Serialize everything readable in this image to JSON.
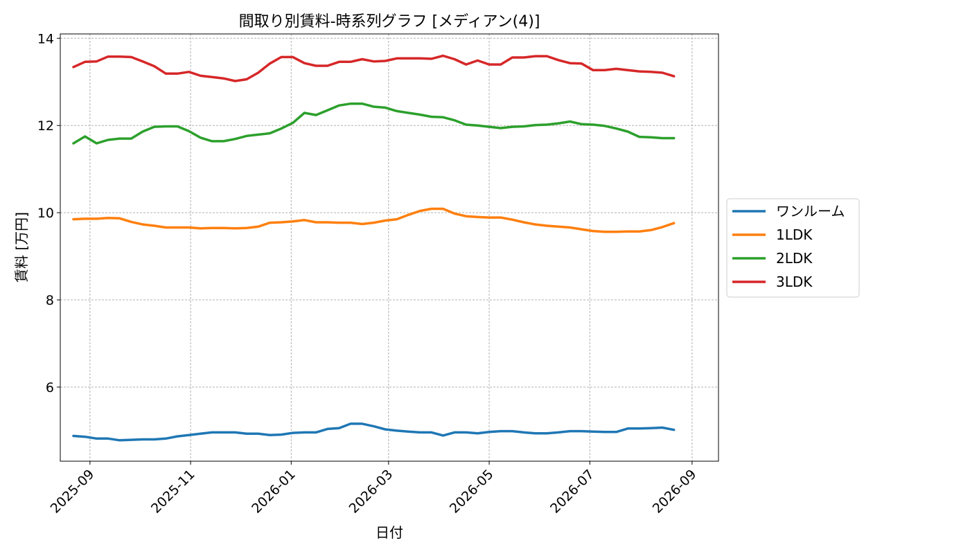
{
  "chart_data": {
    "type": "line",
    "title": "間取り別賃料-時系列グラフ [メディアン(4)]",
    "xlabel": "日付",
    "ylabel": "賃料 [万円]",
    "x_tick_labels": [
      "2025-09",
      "2025-11",
      "2026-01",
      "2026-03",
      "2026-05",
      "2026-07",
      "2026-09"
    ],
    "y_tick_labels": [
      "6",
      "8",
      "10",
      "12",
      "14"
    ],
    "xlim": [
      "2025-08-14",
      "2026-09-17"
    ],
    "ylim": [
      4.3,
      14.1
    ],
    "grid": true,
    "legend_position": "right, outside plot",
    "x": [
      "2025-08-22",
      "2025-08-29",
      "2025-09-05",
      "2025-09-12",
      "2025-09-19",
      "2025-09-26",
      "2025-10-03",
      "2025-10-10",
      "2025-10-17",
      "2025-10-24",
      "2025-10-31",
      "2025-11-07",
      "2025-11-14",
      "2025-11-21",
      "2025-11-28",
      "2025-12-05",
      "2025-12-12",
      "2025-12-19",
      "2025-12-26",
      "2026-01-02",
      "2026-01-09",
      "2026-01-16",
      "2026-01-23",
      "2026-01-30",
      "2026-02-06",
      "2026-02-13",
      "2026-02-20",
      "2026-02-27",
      "2026-03-06",
      "2026-03-13",
      "2026-03-20",
      "2026-03-27",
      "2026-04-03",
      "2026-04-10",
      "2026-04-17",
      "2026-04-24",
      "2026-05-01",
      "2026-05-08",
      "2026-05-15",
      "2026-05-22",
      "2026-05-29",
      "2026-06-05",
      "2026-06-12",
      "2026-06-19",
      "2026-06-26",
      "2026-07-03",
      "2026-07-10",
      "2026-07-17",
      "2026-07-24",
      "2026-07-31",
      "2026-08-07",
      "2026-08-14",
      "2026-08-21"
    ],
    "series": [
      {
        "name": "ワンルーム",
        "color": "#1f77b4",
        "values": [
          4.88,
          4.86,
          4.82,
          4.82,
          4.78,
          4.79,
          4.8,
          4.8,
          4.82,
          4.87,
          4.9,
          4.93,
          4.96,
          4.96,
          4.96,
          4.93,
          4.93,
          4.9,
          4.91,
          4.95,
          4.96,
          4.96,
          5.04,
          5.06,
          5.16,
          5.16,
          5.1,
          5.03,
          5.0,
          4.98,
          4.96,
          4.96,
          4.89,
          4.96,
          4.96,
          4.94,
          4.97,
          4.99,
          4.99,
          4.96,
          4.94,
          4.94,
          4.96,
          4.99,
          4.99,
          4.98,
          4.97,
          4.97,
          5.05,
          5.05,
          5.06,
          5.07,
          5.02
        ]
      },
      {
        "name": "1LDK",
        "color": "#ff7f0e",
        "values": [
          9.85,
          9.86,
          9.86,
          9.88,
          9.87,
          9.79,
          9.73,
          9.7,
          9.66,
          9.66,
          9.66,
          9.64,
          9.65,
          9.65,
          9.64,
          9.65,
          9.68,
          9.77,
          9.78,
          9.8,
          9.83,
          9.78,
          9.78,
          9.77,
          9.77,
          9.74,
          9.77,
          9.82,
          9.85,
          9.95,
          10.04,
          10.09,
          10.09,
          9.98,
          9.92,
          9.9,
          9.89,
          9.89,
          9.84,
          9.78,
          9.73,
          9.7,
          9.68,
          9.66,
          9.62,
          9.58,
          9.56,
          9.56,
          9.57,
          9.57,
          9.6,
          9.67,
          9.76
        ]
      },
      {
        "name": "2LDK",
        "color": "#2ca02c",
        "values": [
          11.59,
          11.75,
          11.59,
          11.67,
          11.7,
          11.7,
          11.86,
          11.97,
          11.98,
          11.98,
          11.87,
          11.72,
          11.64,
          11.64,
          11.69,
          11.76,
          11.79,
          11.82,
          11.93,
          12.06,
          12.29,
          12.24,
          12.35,
          12.46,
          12.5,
          12.5,
          12.43,
          12.41,
          12.33,
          12.29,
          12.25,
          12.2,
          12.19,
          12.12,
          12.02,
          12.0,
          11.97,
          11.94,
          11.97,
          11.98,
          12.01,
          12.02,
          12.05,
          12.09,
          12.03,
          12.02,
          11.99,
          11.93,
          11.86,
          11.74,
          11.73,
          11.71,
          11.71
        ]
      },
      {
        "name": "3LDK",
        "color": "#d62728",
        "values": [
          13.34,
          13.46,
          13.47,
          13.58,
          13.58,
          13.57,
          13.47,
          13.36,
          13.19,
          13.19,
          13.23,
          13.14,
          13.11,
          13.08,
          13.02,
          13.06,
          13.21,
          13.42,
          13.57,
          13.57,
          13.43,
          13.37,
          13.37,
          13.46,
          13.46,
          13.52,
          13.47,
          13.48,
          13.54,
          13.54,
          13.54,
          13.53,
          13.6,
          13.52,
          13.4,
          13.49,
          13.4,
          13.4,
          13.56,
          13.56,
          13.59,
          13.59,
          13.5,
          13.43,
          13.42,
          13.27,
          13.27,
          13.3,
          13.27,
          13.24,
          13.23,
          13.21,
          13.13
        ]
      }
    ]
  }
}
